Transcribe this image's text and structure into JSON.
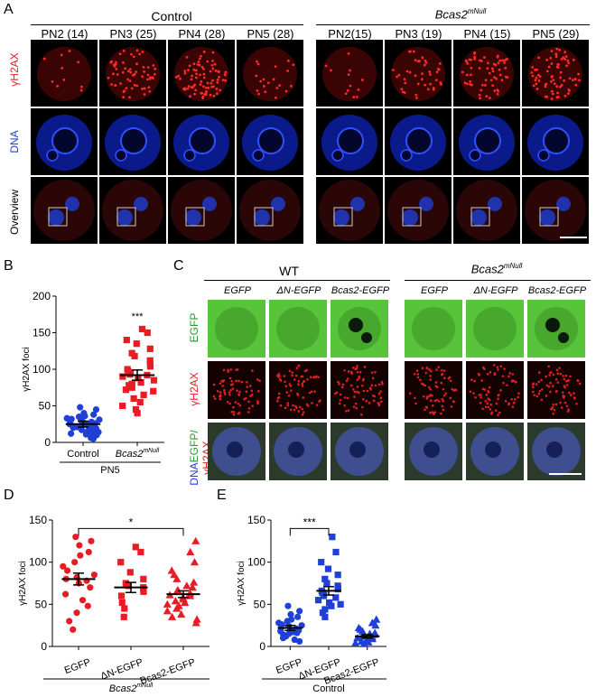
{
  "panel_A": {
    "letter": "A",
    "group_control": "Control",
    "group_mutant": "Bcas2",
    "group_mutant_sup": "mNull",
    "columns": [
      "PN2 (14)",
      "PN3 (25)",
      "PN4 (28)",
      "PN5 (28)",
      "PN2(15)",
      "PN3 (19)",
      "PN4 (15)",
      "PN5 (29)"
    ],
    "row_labels": [
      "γH2AX",
      "DNA",
      "Overview"
    ]
  },
  "panel_B": {
    "letter": "B",
    "group_label": "PN5",
    "significance": "***"
  },
  "panel_C": {
    "letter": "C",
    "group_wt": "WT",
    "group_mutant": "Bcas2",
    "group_mutant_sup": "mNull",
    "columns": [
      "EGFP",
      "ΔN-EGFP",
      "Bcas2-EGFP",
      "EGFP",
      "ΔN-EGFP",
      "Bcas2-EGFP"
    ],
    "row_labels": {
      "egfp": "EGFP",
      "h2ax": "γH2AX",
      "merge_dna": "DNA",
      "merge_egfp": "EGFP/",
      "merge_h2ax": "γH2AX"
    }
  },
  "panel_D": {
    "letter": "D",
    "group_label": "Bcas2",
    "group_label_sup": "mNull",
    "significance": "*"
  },
  "panel_E": {
    "letter": "E",
    "group_label": "Control",
    "significance": "***"
  },
  "chart_data": [
    {
      "id": "B",
      "type": "scatter",
      "xlabel": "",
      "ylabel": "γH2AX foci",
      "ylim": [
        0,
        200
      ],
      "yticks": [
        0,
        50,
        100,
        150,
        200
      ],
      "categories": [
        "Control",
        "Bcas2mNull"
      ],
      "series": [
        {
          "category": "Control",
          "color": "#1f3fd6",
          "marker": "circle",
          "mean": 25,
          "sem": 4,
          "values": [
            48,
            45,
            40,
            38,
            36,
            35,
            33,
            32,
            31,
            30,
            29,
            28,
            27,
            26,
            25,
            24,
            23,
            22,
            22,
            21,
            20,
            20,
            19,
            18,
            17,
            16,
            15,
            14,
            13,
            12,
            11,
            10,
            9,
            8,
            6,
            5
          ]
        },
        {
          "category": "Bcas2mNull",
          "color": "#e81c24",
          "marker": "square",
          "mean": 92,
          "sem": 7,
          "values": [
            155,
            150,
            140,
            135,
            128,
            122,
            118,
            112,
            108,
            104,
            100,
            97,
            95,
            93,
            92,
            90,
            88,
            85,
            82,
            80,
            78,
            75,
            72,
            70,
            65,
            60,
            55,
            50,
            45,
            40
          ]
        }
      ]
    },
    {
      "id": "D",
      "type": "scatter",
      "xlabel": "",
      "ylabel": "γH2AX foci",
      "ylim": [
        0,
        150
      ],
      "yticks": [
        0,
        50,
        100,
        150
      ],
      "categories": [
        "EGFP",
        "ΔN-EGFP",
        "Bcas2-EGFP"
      ],
      "series": [
        {
          "category": "EGFP",
          "color": "#e81c24",
          "marker": "circle",
          "mean": 80,
          "sem": 7,
          "values": [
            130,
            125,
            120,
            112,
            108,
            100,
            95,
            90,
            85,
            82,
            80,
            78,
            75,
            70,
            62,
            55,
            48,
            40,
            30,
            20
          ]
        },
        {
          "category": "ΔN-EGFP",
          "color": "#e81c24",
          "marker": "square",
          "mean": 70,
          "sem": 6,
          "values": [
            118,
            112,
            100,
            88,
            80,
            75,
            72,
            70,
            68,
            65,
            60,
            52,
            45,
            35
          ]
        },
        {
          "category": "Bcas2-EGFP",
          "color": "#e81c24",
          "marker": "triangle",
          "mean": 62,
          "sem": 4,
          "values": [
            125,
            112,
            100,
            90,
            85,
            80,
            76,
            72,
            70,
            67,
            65,
            63,
            61,
            60,
            58,
            56,
            54,
            52,
            50,
            48,
            45,
            42,
            38,
            35,
            32,
            28
          ]
        }
      ]
    },
    {
      "id": "E",
      "type": "scatter",
      "xlabel": "",
      "ylabel": "γH2AX foci",
      "ylim": [
        0,
        150
      ],
      "yticks": [
        0,
        50,
        100,
        150
      ],
      "categories": [
        "EGFP",
        "ΔN-EGFP",
        "Bcas2-EGFP"
      ],
      "series": [
        {
          "category": "EGFP",
          "color": "#1f3fd6",
          "marker": "circle",
          "mean": 22,
          "sem": 3,
          "values": [
            48,
            42,
            38,
            35,
            32,
            30,
            28,
            26,
            25,
            24,
            22,
            21,
            20,
            19,
            18,
            17,
            16,
            15,
            14,
            12,
            10,
            8,
            6
          ]
        },
        {
          "category": "ΔN-EGFP",
          "color": "#1f3fd6",
          "marker": "square",
          "mean": 66,
          "sem": 5,
          "values": [
            130,
            112,
            100,
            92,
            85,
            80,
            75,
            72,
            70,
            68,
            66,
            64,
            62,
            60,
            58,
            55,
            52,
            50,
            48,
            44,
            40,
            35
          ]
        },
        {
          "category": "Bcas2-EGFP",
          "color": "#1f3fd6",
          "marker": "triangle",
          "mean": 12,
          "sem": 2,
          "values": [
            32,
            28,
            25,
            22,
            20,
            18,
            16,
            15,
            14,
            13,
            12,
            11,
            10,
            9,
            8,
            7,
            6,
            5,
            4,
            3
          ]
        }
      ]
    }
  ]
}
